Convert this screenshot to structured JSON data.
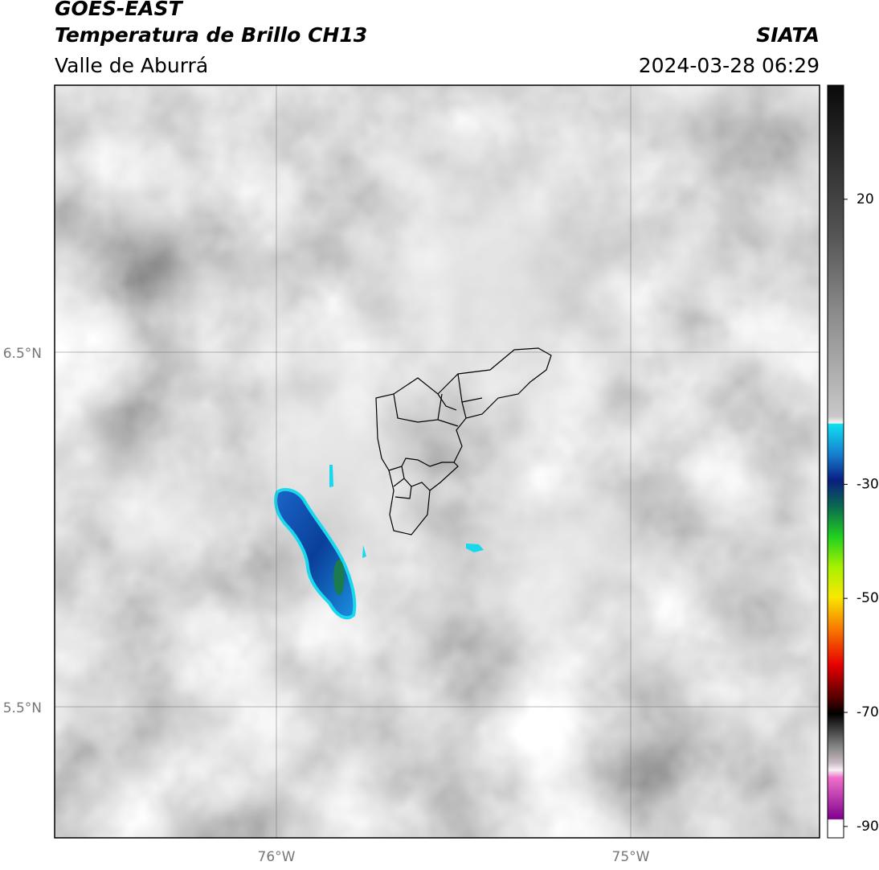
{
  "header": {
    "source": "GOES-EAST",
    "product": "Temperatura de Brillo CH13",
    "region": "Valle de Aburrá",
    "agency": "SIATA",
    "datetime": "2024-03-28 06:29"
  },
  "map": {
    "lat_labels": [
      "6.5°N",
      "5.5°N"
    ],
    "lon_labels": [
      "76°W",
      "75°W"
    ]
  },
  "colorbar": {
    "range": [
      -92,
      40
    ],
    "ticks": [
      20,
      -30,
      -50,
      -70,
      -90
    ]
  }
}
